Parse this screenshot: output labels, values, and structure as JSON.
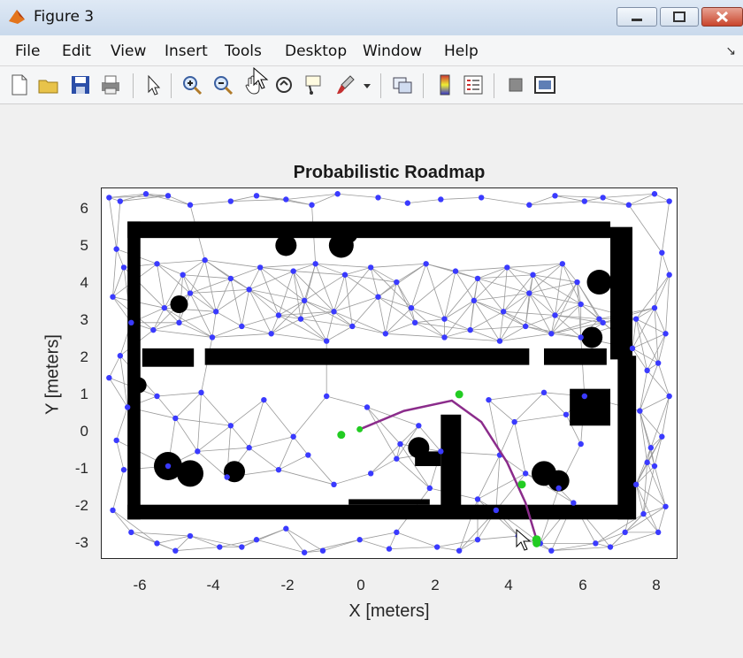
{
  "window": {
    "title": "Figure 3"
  },
  "menu": {
    "items": [
      "File",
      "Edit",
      "View",
      "Insert",
      "Tools",
      "Desktop",
      "Window",
      "Help"
    ]
  },
  "toolbar": {
    "buttons": [
      "new-figure",
      "open",
      "save",
      "print",
      "edit-plot",
      "zoom-in",
      "zoom-out",
      "pan",
      "rotate-3d",
      "data-cursor",
      "brush",
      "link-plot",
      "insert-colorbar",
      "insert-legend",
      "hide-plot-tools",
      "show-plot-tools"
    ]
  },
  "chart_data": {
    "type": "scatter",
    "title": "Probabilistic Roadmap",
    "xlabel": "X [meters]",
    "ylabel": "Y [meters]",
    "xlim": [
      -7.0,
      8.6
    ],
    "ylim": [
      -3.5,
      6.55
    ],
    "xticks": [
      "-6",
      "-4",
      "-2",
      "0",
      "2",
      "4",
      "6",
      "8"
    ],
    "yticks": [
      "6",
      "5",
      "4",
      "3",
      "2",
      "1",
      "0",
      "-1",
      "-2",
      "-3"
    ],
    "colors": {
      "nodes": "#3a3aff",
      "edges": "#9a9a9a",
      "obstacles": "#000000",
      "path": "#8b2c8b",
      "waypoints": "#22cc22"
    },
    "path": {
      "x": [
        0.0,
        1.2,
        2.5,
        3.3,
        4.0,
        4.5,
        4.8
      ],
      "y": [
        0.0,
        0.5,
        0.78,
        0.2,
        -0.9,
        -2.0,
        -3.0
      ]
    },
    "start": {
      "x": 0.0,
      "y": 0.0
    },
    "goal": {
      "x": 4.8,
      "y": -3.0
    },
    "waypoints": {
      "x": [
        -0.5,
        2.7,
        4.4,
        4.8
      ],
      "y": [
        -0.15,
        0.95,
        -1.5,
        -3.1
      ]
    },
    "nodes": {
      "x": [
        -6.8,
        -6.5,
        -5.8,
        -5.2,
        -4.6,
        -3.5,
        -2.8,
        -2.0,
        -1.3,
        -0.6,
        0.5,
        1.3,
        2.2,
        3.3,
        4.6,
        5.3,
        6.1,
        6.6,
        7.3,
        8.0,
        8.4,
        -6.6,
        -6.4,
        -6.7,
        -6.2,
        -6.5,
        -6.8,
        -6.3,
        -6.6,
        -6.4,
        -6.7,
        8.2,
        8.4,
        8.0,
        8.3,
        8.1,
        8.4,
        8.2,
        8.0,
        8.3,
        8.1,
        -5.5,
        -4.8,
        -4.2,
        -3.5,
        -2.7,
        -1.8,
        -1.2,
        -0.4,
        0.3,
        1.0,
        1.8,
        2.6,
        3.2,
        4.0,
        4.7,
        5.5,
        5.9,
        -5.3,
        -4.6,
        -3.9,
        -3.0,
        -2.2,
        -1.5,
        -0.7,
        0.5,
        1.4,
        2.3,
        3.1,
        3.9,
        4.6,
        5.3,
        6.0,
        6.5,
        -5.6,
        -4.9,
        -4.0,
        -3.2,
        -2.4,
        -1.6,
        -0.9,
        -0.2,
        0.7,
        1.5,
        2.3,
        3.0,
        3.8,
        4.5,
        5.2,
        6.0,
        6.6,
        -5.5,
        -5.0,
        -4.3,
        -3.5,
        -2.6,
        -1.8,
        -0.9,
        0.2,
        1.0,
        1.6,
        2.2,
        -5.2,
        -4.4,
        -3.6,
        -3.0,
        -2.2,
        -1.4,
        -0.7,
        0.3,
        1.1,
        1.9,
        3.5,
        4.2,
        5.0,
        5.6,
        6.1,
        3.8,
        4.5,
        5.4,
        6.0,
        3.2,
        3.7,
        5.8,
        -6.2,
        -5.5,
        -4.6,
        -3.8,
        -2.8,
        -2.0,
        -1.0,
        0.0,
        1.0,
        2.1,
        3.2,
        4.3,
        5.2,
        6.4,
        7.2,
        -5.0,
        -3.2,
        -1.5,
        0.8,
        2.7,
        4.9,
        6.8,
        7.5,
        7.8,
        7.6,
        7.9,
        7.5,
        7.7,
        7.4,
        7.8
      ],
      "y": [
        6.3,
        6.2,
        6.4,
        6.35,
        6.1,
        6.2,
        6.35,
        6.25,
        6.1,
        6.4,
        6.3,
        6.15,
        6.25,
        6.3,
        6.1,
        6.35,
        6.2,
        6.3,
        6.1,
        6.4,
        6.2,
        4.9,
        4.4,
        3.6,
        2.9,
        2.0,
        1.4,
        0.6,
        -0.3,
        -1.1,
        -2.2,
        4.8,
        4.2,
        3.3,
        2.6,
        1.8,
        0.9,
        -0.2,
        -1.0,
        -2.1,
        -2.8,
        4.5,
        4.2,
        4.6,
        4.1,
        4.4,
        4.3,
        4.5,
        4.2,
        4.4,
        4.0,
        4.5,
        4.3,
        4.1,
        4.4,
        4.2,
        4.5,
        4.0,
        3.3,
        3.7,
        3.2,
        3.8,
        3.1,
        3.5,
        3.2,
        3.6,
        3.3,
        3.0,
        3.5,
        3.2,
        3.7,
        3.1,
        3.4,
        3.0,
        2.7,
        2.9,
        2.5,
        2.8,
        2.6,
        3.0,
        2.4,
        2.8,
        2.6,
        2.9,
        2.5,
        2.7,
        2.4,
        2.8,
        2.6,
        2.5,
        2.9,
        0.9,
        0.3,
        1.0,
        0.1,
        0.8,
        -0.2,
        0.9,
        0.6,
        -0.8,
        0.1,
        -0.6,
        -1.0,
        -0.6,
        -1.3,
        -0.5,
        -1.1,
        -0.7,
        -1.5,
        -1.2,
        -0.4,
        -1.6,
        0.8,
        0.2,
        1.0,
        0.4,
        0.9,
        -0.7,
        -1.2,
        -1.6,
        -0.4,
        -1.9,
        -2.2,
        -2.0,
        -2.8,
        -3.1,
        -2.9,
        -3.2,
        -3.0,
        -2.7,
        -3.3,
        -3.0,
        -2.8,
        -3.2,
        -3.0,
        -2.9,
        -3.3,
        -3.1,
        -2.8,
        -3.3,
        -3.2,
        -3.35,
        -3.25,
        -3.3,
        -3.1,
        -3.2,
        3.0,
        1.6,
        0.5,
        -0.5,
        -1.5,
        -2.3,
        2.2,
        -0.9
      ]
    }
  },
  "cursor": {
    "icon": "arrow-cursor"
  }
}
